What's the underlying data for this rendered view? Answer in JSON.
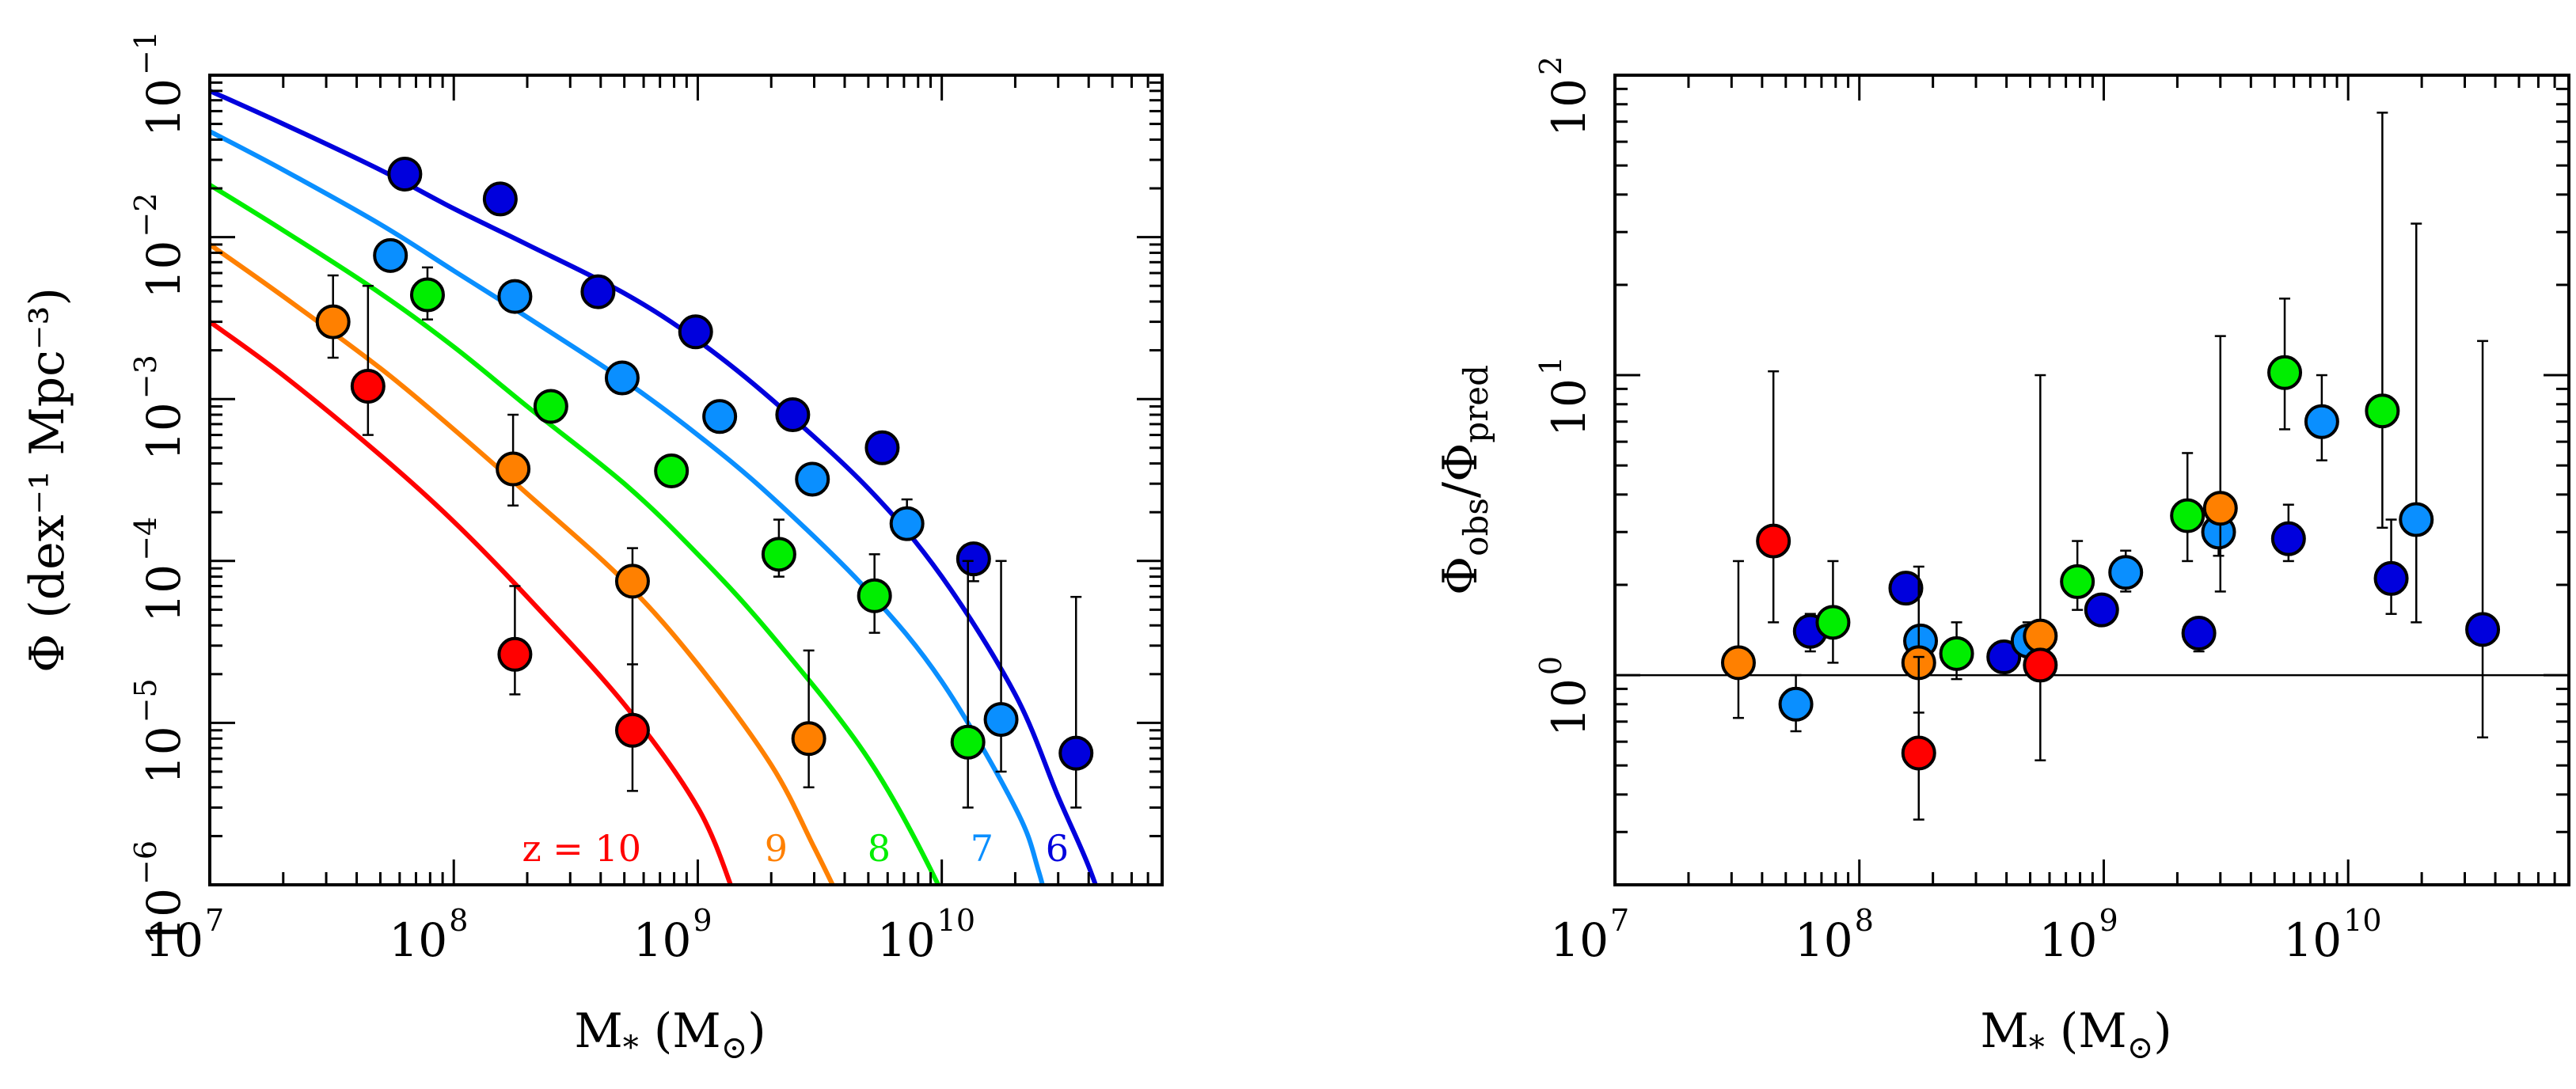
{
  "colors": {
    "z10": "#ff0000",
    "z9": "#ff8000",
    "z8": "#00ee00",
    "z7": "#0a8fff",
    "z6": "#0000dd"
  },
  "chart_data": [
    {
      "type": "scatter",
      "panel": "left",
      "title": "",
      "xlabel": {
        "main": "M",
        "sub": "*",
        "unit_open": " (M",
        "unit_sub": "⊙",
        "unit_close": ")"
      },
      "ylabel": "Φ (dex⁻¹ Mpc⁻³)",
      "xscale": "log",
      "yscale": "log",
      "xlim": [
        10000000.0,
        80000000000.0
      ],
      "ylim": [
        1e-06,
        0.1
      ],
      "xticks": [
        {
          "mant": "10",
          "exp": "7"
        },
        {
          "mant": "10",
          "exp": "8"
        },
        {
          "mant": "10",
          "exp": "9"
        },
        {
          "mant": "10",
          "exp": "10"
        }
      ],
      "yticks": [
        {
          "mant": "10",
          "exp": "−6"
        },
        {
          "mant": "10",
          "exp": "−5"
        },
        {
          "mant": "10",
          "exp": "−4"
        },
        {
          "mant": "10",
          "exp": "−3"
        },
        {
          "mant": "10",
          "exp": "−2"
        },
        {
          "mant": "10",
          "exp": "−1"
        }
      ],
      "curve_labels": [
        {
          "text": "z = 10",
          "series": "z10"
        },
        {
          "text": "9",
          "series": "z9"
        },
        {
          "text": "8",
          "series": "z8"
        },
        {
          "text": "7",
          "series": "z7"
        },
        {
          "text": "6",
          "series": "z6"
        }
      ],
      "series": [
        {
          "name": "z=6",
          "key": "z6",
          "model": {
            "x": [
              10000000.0,
              20000000.0,
              50000000.0,
              100000000.0,
              200000000.0,
              500000000.0,
              1000000000.0,
              2000000000.0,
              5000000000.0,
              10000000000.0,
              20000000000.0,
              30000000000.0,
              40000000000.0,
              50000000000.0
            ],
            "y": [
              0.08,
              0.05,
              0.026,
              0.015,
              0.009,
              0.0045,
              0.0023,
              0.001,
              0.00028,
              8e-05,
              1.5e-05,
              3.5e-06,
              1.3e-06,
              5e-07
            ]
          },
          "points": [
            {
              "x": 63000000.0,
              "y": 0.0245,
              "lo": 0.0245,
              "hi": 0.0245
            },
            {
              "x": 155000000.0,
              "y": 0.0172,
              "lo": 0.0172,
              "hi": 0.0172
            },
            {
              "x": 390000000.0,
              "y": 0.0046,
              "lo": 0.0046,
              "hi": 0.0046
            },
            {
              "x": 980000000.0,
              "y": 0.0026,
              "lo": 0.0026,
              "hi": 0.0026
            },
            {
              "x": 2450000000.0,
              "y": 0.0008,
              "lo": 0.0008,
              "hi": 0.0008
            },
            {
              "x": 5700000000.0,
              "y": 0.0005,
              "lo": 0.00046,
              "hi": 0.00056
            },
            {
              "x": 13500000000.0,
              "y": 0.000103,
              "lo": 7.5e-05,
              "hi": 0.00011
            },
            {
              "x": 35500000000.0,
              "y": 6.5e-06,
              "lo": 3e-06,
              "hi": 6e-05
            }
          ]
        },
        {
          "name": "z=7",
          "key": "z7",
          "model": {
            "x": [
              10000000.0,
              20000000.0,
              50000000.0,
              100000000.0,
              200000000.0,
              500000000.0,
              1000000000.0,
              2000000000.0,
              5000000000.0,
              10000000000.0,
              20000000000.0,
              25000000000.0,
              30000000000.0
            ],
            "y": [
              0.045,
              0.026,
              0.012,
              0.0062,
              0.0032,
              0.0013,
              0.0006,
              0.00025,
              6.5e-05,
              1.8e-05,
              3e-06,
              1.2e-06,
              4e-07
            ]
          },
          "points": [
            {
              "x": 55000000.0,
              "y": 0.0077,
              "lo": 0.0077,
              "hi": 0.0077
            },
            {
              "x": 178000000.0,
              "y": 0.0043,
              "lo": 0.0043,
              "hi": 0.0043
            },
            {
              "x": 490000000.0,
              "y": 0.00135,
              "lo": 0.00135,
              "hi": 0.00135
            },
            {
              "x": 1230000000.0,
              "y": 0.00078,
              "lo": 0.00078,
              "hi": 0.00078
            },
            {
              "x": 2950000000.0,
              "y": 0.00032,
              "lo": 0.00032,
              "hi": 0.00032
            },
            {
              "x": 7200000000.0,
              "y": 0.00017,
              "lo": 0.00014,
              "hi": 0.00024
            },
            {
              "x": 17500000000.0,
              "y": 1.05e-05,
              "lo": 5e-06,
              "hi": 0.0001
            }
          ]
        },
        {
          "name": "z=8",
          "key": "z8",
          "model": {
            "x": [
              10000000.0,
              20000000.0,
              50000000.0,
              100000000.0,
              200000000.0,
              500000000.0,
              1000000000.0,
              2000000000.0,
              5000000000.0,
              10000000000.0,
              13000000000.0
            ],
            "y": [
              0.021,
              0.011,
              0.0045,
              0.0021,
              0.0009,
              0.0003,
              0.00011,
              3.5e-05,
              6e-06,
              9e-07,
              3e-07
            ]
          },
          "points": [
            {
              "x": 78000000.0,
              "y": 0.0044,
              "lo": 0.0031,
              "hi": 0.0065
            },
            {
              "x": 250000000.0,
              "y": 0.0009,
              "lo": 0.0009,
              "hi": 0.0011
            },
            {
              "x": 780000000.0,
              "y": 0.00036,
              "lo": 0.00029,
              "hi": 0.00045
            },
            {
              "x": 2150000000.0,
              "y": 0.00011,
              "lo": 8e-05,
              "hi": 0.00018
            },
            {
              "x": 5300000000.0,
              "y": 6.1e-05,
              "lo": 3.6e-05,
              "hi": 0.00011
            },
            {
              "x": 12800000000.0,
              "y": 7.6e-06,
              "lo": 3e-06,
              "hi": 0.0001
            }
          ]
        },
        {
          "name": "z=9",
          "key": "z9",
          "model": {
            "x": [
              10000000.0,
              20000000.0,
              50000000.0,
              100000000.0,
              200000000.0,
              500000000.0,
              1000000000.0,
              2000000000.0,
              3000000000.0,
              4000000000.0
            ],
            "y": [
              0.009,
              0.0043,
              0.00155,
              0.00065,
              0.00026,
              7.5e-05,
              2.3e-05,
              5.5e-06,
              1.7e-06,
              7e-07
            ]
          },
          "points": [
            {
              "x": 32000000.0,
              "y": 0.003,
              "lo": 0.0018,
              "hi": 0.0058
            },
            {
              "x": 175000000.0,
              "y": 0.00037,
              "lo": 0.00022,
              "hi": 0.0008
            },
            {
              "x": 540000000.0,
              "y": 7.5e-05,
              "lo": 7.5e-06,
              "hi": 0.00012
            },
            {
              "x": 2850000000.0,
              "y": 8e-06,
              "lo": 4e-06,
              "hi": 2.8e-05
            }
          ]
        },
        {
          "name": "z=10",
          "key": "z10",
          "model": {
            "x": [
              10000000.0,
              20000000.0,
              50000000.0,
              100000000.0,
              200000000.0,
              500000000.0,
              1000000000.0,
              1400000000.0
            ],
            "y": [
              0.003,
              0.0014,
              0.00045,
              0.000175,
              6e-05,
              1.3e-05,
              3e-06,
              9e-07
            ]
          },
          "points": [
            {
              "x": 44500000.0,
              "y": 0.0012,
              "lo": 0.0006,
              "hi": 0.005
            },
            {
              "x": 178000000.0,
              "y": 2.65e-05,
              "lo": 1.5e-05,
              "hi": 7e-05
            },
            {
              "x": 540000000.0,
              "y": 9e-06,
              "lo": 3.8e-06,
              "hi": 2.3e-05
            }
          ]
        }
      ]
    },
    {
      "type": "scatter",
      "panel": "right",
      "title": "",
      "xlabel": {
        "main": "M",
        "sub": "*",
        "unit_open": " (M",
        "unit_sub": "⊙",
        "unit_close": ")"
      },
      "ylabel": {
        "num": "Φ",
        "num_sub": "obs",
        "slash": "/Φ",
        "den_sub": "pred"
      },
      "xscale": "log",
      "yscale": "log",
      "xlim": [
        10000000.0,
        80000000000.0
      ],
      "ylim": [
        0.2,
        100
      ],
      "reference_line": 1,
      "xticks": [
        {
          "mant": "10",
          "exp": "7"
        },
        {
          "mant": "10",
          "exp": "8"
        },
        {
          "mant": "10",
          "exp": "9"
        },
        {
          "mant": "10",
          "exp": "10"
        }
      ],
      "yticks": [
        {
          "mant": "10",
          "exp": "0"
        },
        {
          "mant": "10",
          "exp": "1"
        },
        {
          "mant": "10",
          "exp": "2"
        }
      ],
      "series": [
        {
          "name": "z=6",
          "key": "z6",
          "points": [
            {
              "x": 63000000.0,
              "y": 1.4,
              "lo": 1.2,
              "hi": 1.6
            },
            {
              "x": 155000000.0,
              "y": 1.95,
              "lo": 1.8,
              "hi": 2.1
            },
            {
              "x": 390000000.0,
              "y": 1.15,
              "lo": 1.05,
              "hi": 1.25
            },
            {
              "x": 980000000.0,
              "y": 1.65,
              "lo": 1.5,
              "hi": 1.8
            },
            {
              "x": 2450000000.0,
              "y": 1.38,
              "lo": 1.2,
              "hi": 1.55
            },
            {
              "x": 5700000000.0,
              "y": 2.85,
              "lo": 2.4,
              "hi": 3.7
            },
            {
              "x": 15000000000.0,
              "y": 2.1,
              "lo": 1.6,
              "hi": 3.3
            },
            {
              "x": 35500000000.0,
              "y": 1.42,
              "lo": 0.62,
              "hi": 13
            }
          ]
        },
        {
          "name": "z=7",
          "key": "z7",
          "points": [
            {
              "x": 55000000.0,
              "y": 0.8,
              "lo": 0.65,
              "hi": 1.0
            },
            {
              "x": 178000000.0,
              "y": 1.3,
              "lo": 1.2,
              "hi": 1.45
            },
            {
              "x": 490000000.0,
              "y": 1.3,
              "lo": 1.15,
              "hi": 1.5
            },
            {
              "x": 1230000000.0,
              "y": 2.2,
              "lo": 1.9,
              "hi": 2.6
            },
            {
              "x": 2950000000.0,
              "y": 3.0,
              "lo": 2.5,
              "hi": 3.6
            },
            {
              "x": 7800000000.0,
              "y": 7.0,
              "lo": 5.2,
              "hi": 10
            },
            {
              "x": 19000000000.0,
              "y": 3.3,
              "lo": 1.5,
              "hi": 32
            }
          ]
        },
        {
          "name": "z=8",
          "key": "z8",
          "points": [
            {
              "x": 78000000.0,
              "y": 1.5,
              "lo": 1.1,
              "hi": 2.4
            },
            {
              "x": 250000000.0,
              "y": 1.18,
              "lo": 0.97,
              "hi": 1.5
            },
            {
              "x": 780000000.0,
              "y": 2.05,
              "lo": 1.65,
              "hi": 2.8
            },
            {
              "x": 2200000000.0,
              "y": 3.4,
              "lo": 2.4,
              "hi": 5.5
            },
            {
              "x": 5500000000.0,
              "y": 10.2,
              "lo": 6.6,
              "hi": 18
            },
            {
              "x": 13800000000.0,
              "y": 7.6,
              "lo": 3.1,
              "hi": 75
            }
          ]
        },
        {
          "name": "z=9",
          "key": "z9",
          "points": [
            {
              "x": 32000000.0,
              "y": 1.1,
              "lo": 0.72,
              "hi": 2.4
            },
            {
              "x": 175000000.0,
              "y": 1.1,
              "lo": 0.75,
              "hi": 2.3
            },
            {
              "x": 550000000.0,
              "y": 1.35,
              "lo": 0.52,
              "hi": 10
            },
            {
              "x": 3000000000.0,
              "y": 3.6,
              "lo": 1.9,
              "hi": 13.5
            }
          ]
        },
        {
          "name": "z=10",
          "key": "z10",
          "points": [
            {
              "x": 44500000.0,
              "y": 2.8,
              "lo": 1.5,
              "hi": 10.3
            },
            {
              "x": 175000000.0,
              "y": 0.55,
              "lo": 0.33,
              "hi": 1.15
            },
            {
              "x": 550000000.0,
              "y": 1.08,
              "lo": 1.0,
              "hi": 1.2
            }
          ]
        }
      ]
    }
  ]
}
